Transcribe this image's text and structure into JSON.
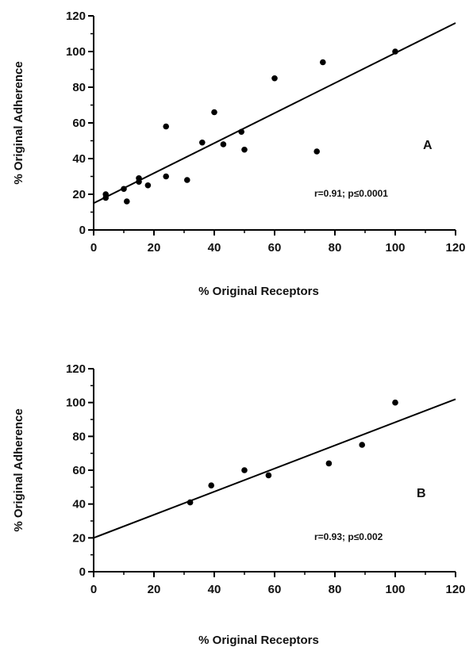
{
  "chart_data": [
    {
      "type": "scatter",
      "panel_label": "A",
      "annotation": "r=0.91;  p≤0.0001",
      "xlabel": "% Original Receptors",
      "ylabel": "% Original Adherence",
      "xlim": [
        0,
        120
      ],
      "ylim": [
        0,
        120
      ],
      "xticks": [
        0,
        20,
        40,
        60,
        80,
        100,
        120
      ],
      "yticks": [
        0,
        20,
        40,
        60,
        80,
        100,
        120
      ],
      "x": [
        4,
        4,
        10,
        11,
        15,
        15,
        18,
        24,
        24,
        31,
        36,
        40,
        43,
        49,
        50,
        60,
        74,
        76,
        100
      ],
      "y": [
        18,
        20,
        23,
        16,
        27,
        29,
        25,
        30,
        58,
        28,
        49,
        66,
        48,
        55,
        45,
        85,
        44,
        94,
        100
      ],
      "regression": {
        "x": [
          0,
          120
        ],
        "y": [
          15,
          116
        ]
      }
    },
    {
      "type": "scatter",
      "panel_label": "B",
      "annotation": "r=0.93; p≤0.002",
      "xlabel": "% Original Receptors",
      "ylabel": "% Original Adherence",
      "xlim": [
        0,
        120
      ],
      "ylim": [
        0,
        120
      ],
      "xticks": [
        0,
        20,
        40,
        60,
        80,
        100,
        120
      ],
      "yticks": [
        0,
        20,
        40,
        60,
        80,
        100,
        120
      ],
      "x": [
        32,
        39,
        50,
        58,
        78,
        89,
        100
      ],
      "y": [
        41,
        51,
        60,
        57,
        64,
        75,
        100
      ],
      "regression": {
        "x": [
          0,
          120
        ],
        "y": [
          20,
          102
        ]
      }
    }
  ]
}
